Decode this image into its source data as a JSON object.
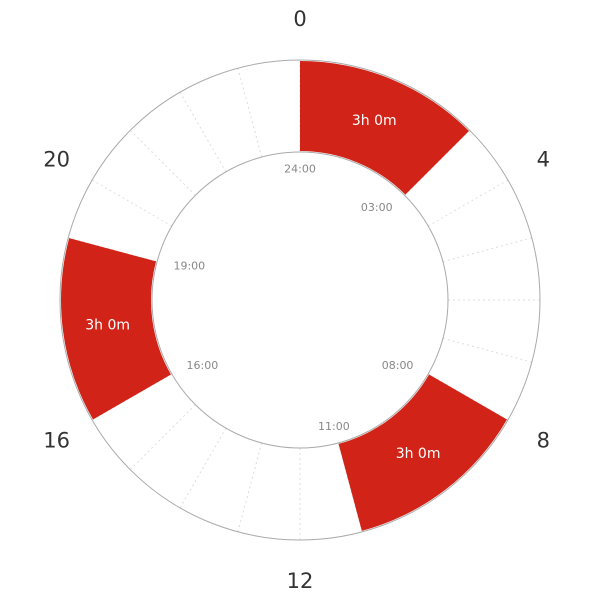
{
  "colors": {
    "segment": "#d12318",
    "ring_stroke": "#aaaaaa",
    "grid": "#dddddd"
  },
  "chart_data": {
    "type": "radial-timeline",
    "hour_labels": [
      "0",
      "4",
      "8",
      "12",
      "16",
      "20"
    ],
    "hours_in_day": 24,
    "grid": true,
    "segments": [
      {
        "start": 0,
        "end": 3,
        "duration_label": "3h 0m",
        "start_label": "24:00",
        "end_label": "03:00"
      },
      {
        "start": 8,
        "end": 11,
        "duration_label": "3h 0m",
        "start_label": "08:00",
        "end_label": "11:00"
      },
      {
        "start": 16,
        "end": 19,
        "duration_label": "3h 0m",
        "start_label": "16:00",
        "end_label": "19:00"
      }
    ]
  }
}
